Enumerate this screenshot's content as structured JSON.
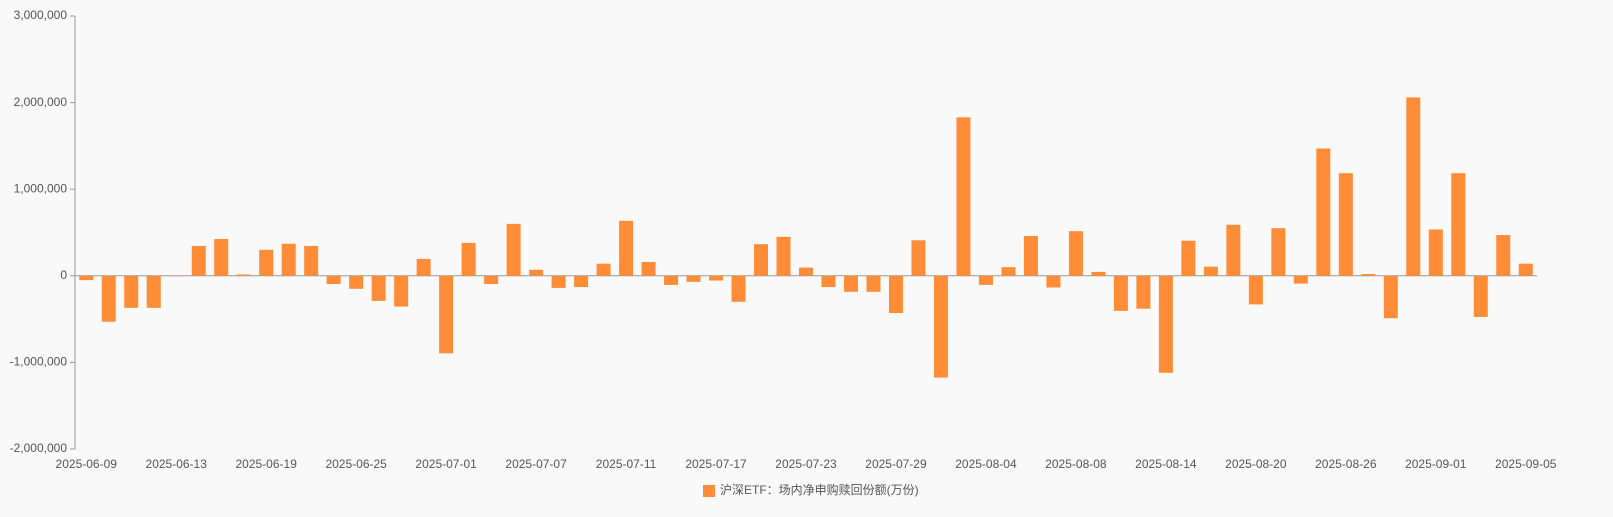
{
  "chart_data": {
    "type": "bar",
    "categories": [
      "2025-06-09",
      null,
      null,
      null,
      "2025-06-13",
      null,
      null,
      null,
      "2025-06-19",
      null,
      null,
      null,
      "2025-06-25",
      null,
      null,
      null,
      "2025-07-01",
      null,
      null,
      null,
      "2025-07-07",
      null,
      null,
      null,
      "2025-07-11",
      null,
      null,
      null,
      "2025-07-17",
      null,
      null,
      null,
      "2025-07-23",
      null,
      null,
      null,
      "2025-07-29",
      null,
      null,
      null,
      "2025-08-04",
      null,
      null,
      null,
      "2025-08-08",
      null,
      null,
      null,
      "2025-08-14",
      null,
      null,
      null,
      "2025-08-20",
      null,
      null,
      null,
      "2025-08-26",
      null,
      null,
      null,
      "2025-09-01",
      null,
      null,
      null,
      "2025-09-05"
    ],
    "series": [
      {
        "name": "沪深ETF：场内净申购赎回份额(万份)",
        "color": "#ff8c37",
        "values": [
          -50000,
          -530000,
          -370000,
          -370000,
          -5000,
          345000,
          425000,
          15000,
          300000,
          370000,
          345000,
          -95000,
          -150000,
          -290000,
          -355000,
          195000,
          -895000,
          380000,
          -95000,
          600000,
          70000,
          -140000,
          -130000,
          140000,
          635000,
          160000,
          -105000,
          -70000,
          -55000,
          -300000,
          365000,
          450000,
          95000,
          -130000,
          -185000,
          -185000,
          -430000,
          410000,
          -1175000,
          1830000,
          -105000,
          100000,
          460000,
          -135000,
          515000,
          45000,
          -405000,
          -380000,
          -1120000,
          405000,
          105000,
          590000,
          -330000,
          550000,
          -90000,
          1470000,
          1185000,
          20000,
          -490000,
          2060000,
          535000,
          1185000,
          -475000,
          470000,
          140000
        ]
      }
    ],
    "ylim": [
      -2000000,
      3000000
    ],
    "yticks": [
      {
        "value": -2000000,
        "label": "-2,000,000"
      },
      {
        "value": -1000000,
        "label": "-1,000,000"
      },
      0,
      {
        "value": 1000000,
        "label": "1,000,000"
      },
      {
        "value": 2000000,
        "label": "2,000,000"
      },
      {
        "value": 3000000,
        "label": "3,000,000"
      }
    ],
    "legend": "bottom"
  }
}
